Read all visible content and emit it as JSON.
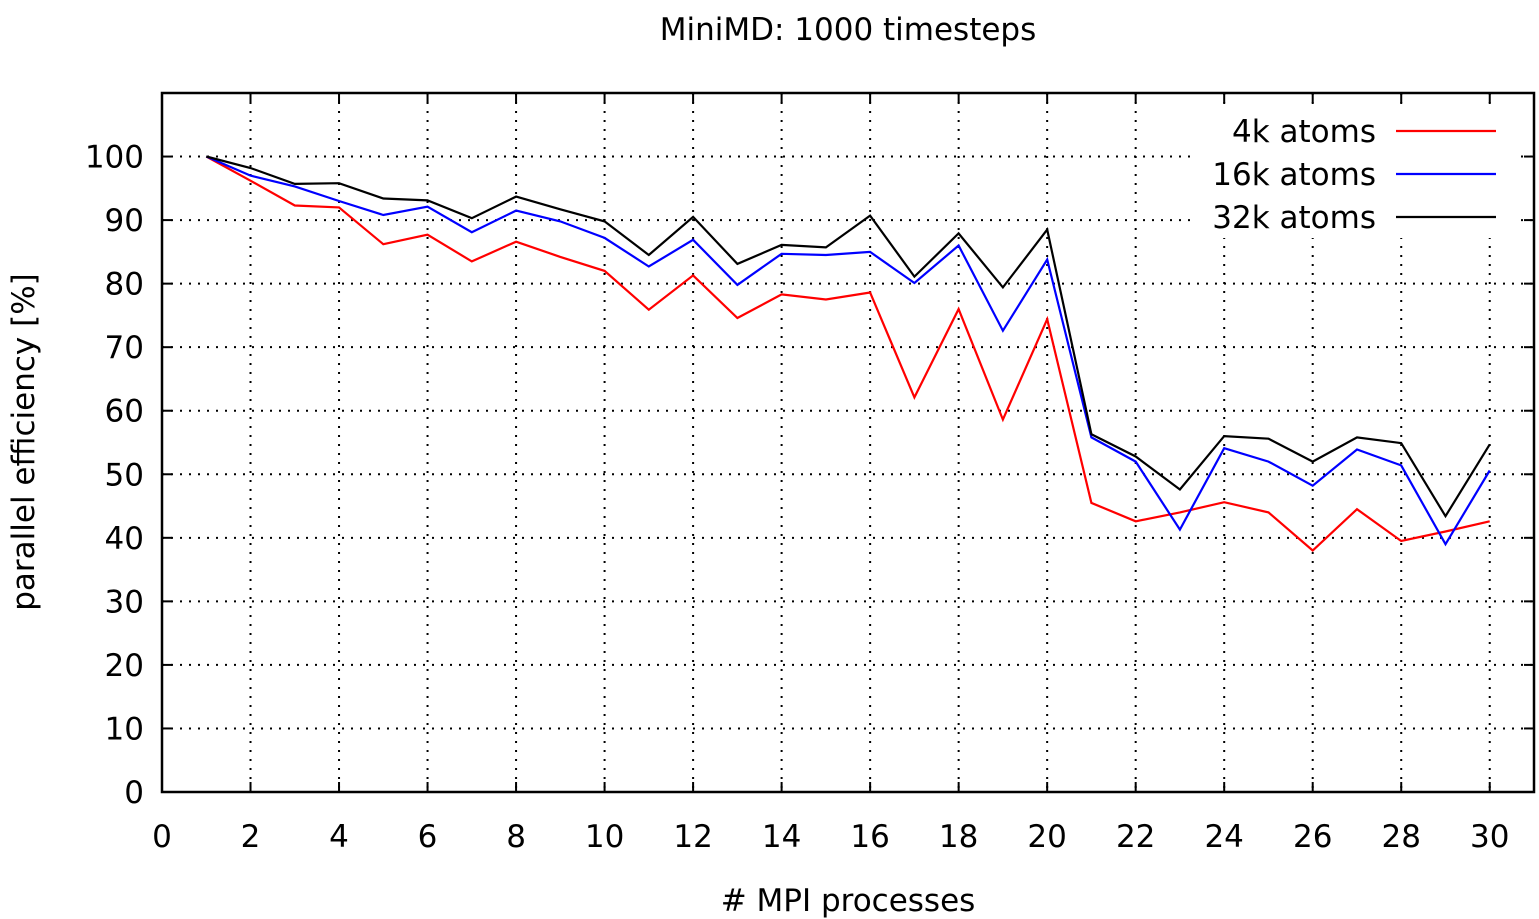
{
  "chart_data": {
    "type": "line",
    "title": "MiniMD: 1000 timesteps",
    "xlabel": "# MPI processes",
    "ylabel": "parallel efficiency [%]",
    "xlim": [
      0,
      31
    ],
    "ylim": [
      0,
      110
    ],
    "xticks": [
      0,
      2,
      4,
      6,
      8,
      10,
      12,
      14,
      16,
      18,
      20,
      22,
      24,
      26,
      28,
      30
    ],
    "yticks": [
      0,
      10,
      20,
      30,
      40,
      50,
      60,
      70,
      80,
      90,
      100
    ],
    "grid": true,
    "legend_position": "top-right",
    "x": [
      1,
      2,
      3,
      4,
      5,
      6,
      7,
      8,
      9,
      10,
      11,
      12,
      13,
      14,
      15,
      16,
      17,
      18,
      19,
      20,
      21,
      22,
      23,
      24,
      25,
      26,
      27,
      28,
      29,
      30
    ],
    "series": [
      {
        "name": "4k atoms",
        "color": "#ff0000",
        "values": [
          100,
          96.2,
          92.3,
          92.0,
          86.2,
          87.7,
          83.5,
          86.6,
          84.2,
          82.0,
          75.9,
          81.3,
          74.6,
          78.3,
          77.5,
          78.6,
          62.1,
          76.0,
          58.6,
          74.4,
          45.5,
          42.6,
          44.0,
          45.6,
          44.0,
          38.0,
          44.5,
          39.5,
          41.0,
          42.6
        ]
      },
      {
        "name": "16k atoms",
        "color": "#0000ff",
        "values": [
          100,
          97.0,
          95.3,
          93.0,
          90.8,
          92.1,
          88.1,
          91.5,
          89.8,
          87.2,
          82.7,
          86.9,
          79.8,
          84.7,
          84.5,
          85.0,
          80.1,
          86.0,
          72.6,
          83.8,
          55.8,
          52.0,
          41.3,
          54.1,
          52.0,
          48.2,
          53.9,
          51.4,
          39.0,
          50.6
        ]
      },
      {
        "name": "32k atoms",
        "color": "#000000",
        "values": [
          100,
          98.2,
          95.7,
          95.8,
          93.4,
          93.1,
          90.3,
          93.7,
          91.7,
          89.8,
          84.5,
          90.5,
          83.1,
          86.1,
          85.7,
          90.7,
          81.1,
          87.9,
          79.4,
          88.5,
          56.3,
          52.8,
          47.6,
          56.0,
          55.6,
          52.0,
          55.8,
          54.9,
          43.4,
          54.7
        ]
      }
    ]
  }
}
